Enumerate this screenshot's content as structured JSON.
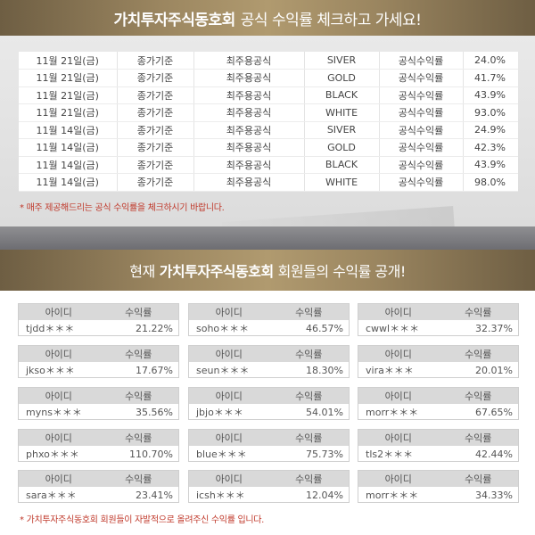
{
  "top_banner": {
    "brand": "가치투자주식동호회",
    "text": "공식 수익률 체크하고 가세요!"
  },
  "official_rows": [
    [
      "11월 21일(금)",
      "종가기준",
      "최주용공식",
      "SIVER",
      "공식수익률",
      "24.0%"
    ],
    [
      "11월 21일(금)",
      "종가기준",
      "최주용공식",
      "GOLD",
      "공식수익률",
      "41.7%"
    ],
    [
      "11월 21일(금)",
      "종가기준",
      "최주용공식",
      "BLACK",
      "공식수익률",
      "43.9%"
    ],
    [
      "11월 21일(금)",
      "종가기준",
      "최주용공식",
      "WHITE",
      "공식수익률",
      "93.0%"
    ],
    [
      "11월 14일(금)",
      "종가기준",
      "최주용공식",
      "SIVER",
      "공식수익률",
      "24.9%"
    ],
    [
      "11월 14일(금)",
      "종가기준",
      "최주용공식",
      "GOLD",
      "공식수익률",
      "42.3%"
    ],
    [
      "11월 14일(금)",
      "종가기준",
      "최주용공식",
      "BLACK",
      "공식수익률",
      "43.9%"
    ],
    [
      "11월 14일(금)",
      "종가기준",
      "최주용공식",
      "WHITE",
      "공식수익률",
      "98.0%"
    ]
  ],
  "upper_note": "* 매주 제공해드리는 공식 수익률을 체크하시기 바랍니다.",
  "mid_banner": {
    "prefix": "현재",
    "brand": "가치투자주식동호회",
    "suffix": "회원들의 수익률 공개!"
  },
  "member_headers": {
    "id": "아이디",
    "rate": "수익률"
  },
  "members": [
    {
      "id": "tjdd＊＊＊",
      "rate": "21.22%"
    },
    {
      "id": "soho＊＊＊",
      "rate": "46.57%"
    },
    {
      "id": "cwwl＊＊＊",
      "rate": "32.37%"
    },
    {
      "id": "jkso＊＊＊",
      "rate": "17.67%"
    },
    {
      "id": "seun＊＊＊",
      "rate": "18.30%"
    },
    {
      "id": "vira＊＊＊",
      "rate": "20.01%"
    },
    {
      "id": "myns＊＊＊",
      "rate": "35.56%"
    },
    {
      "id": "jbjo＊＊＊",
      "rate": "54.01%"
    },
    {
      "id": "morr＊＊＊",
      "rate": "67.65%"
    },
    {
      "id": "phxo＊＊＊",
      "rate": "110.70%"
    },
    {
      "id": "blue＊＊＊",
      "rate": "75.73%"
    },
    {
      "id": "tls2＊＊＊",
      "rate": "42.44%"
    },
    {
      "id": "sara＊＊＊",
      "rate": "23.41%"
    },
    {
      "id": "icsh＊＊＊",
      "rate": "12.04%"
    },
    {
      "id": "morr＊＊＊",
      "rate": "34.33%"
    }
  ],
  "lower_note": "* 가치투자주식동호회 회원들이 자발적으로 올려주신 수익률 입니다."
}
